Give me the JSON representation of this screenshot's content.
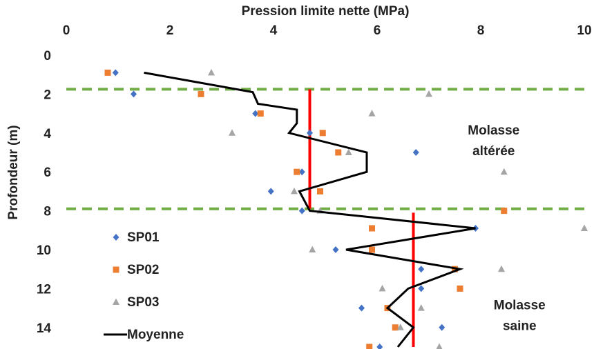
{
  "chart_data": {
    "type": "scatter",
    "title": "",
    "xlabel": "Pression limite nette (MPa)",
    "ylabel": "Profondeur (m)",
    "xlim": [
      0,
      10
    ],
    "ylim": [
      0,
      15
    ],
    "y_inverted": true,
    "x_axis_position": "top",
    "x_ticks": [
      "0",
      "2",
      "4",
      "6",
      "8",
      "10"
    ],
    "y_ticks": [
      "0",
      "2",
      "4",
      "6",
      "8",
      "10",
      "12",
      "14"
    ],
    "grid": false,
    "legend_position": "bottom-left",
    "series": [
      {
        "name": "SP01",
        "marker": "diamond",
        "color": "#4472C4",
        "points": [
          [
            0.95,
            0.9
          ],
          [
            1.3,
            2.0
          ],
          [
            3.65,
            3.0
          ],
          [
            4.7,
            4.0
          ],
          [
            6.75,
            5.0
          ],
          [
            4.55,
            6.0
          ],
          [
            3.95,
            7.0
          ],
          [
            4.55,
            8.0
          ],
          [
            7.9,
            8.9
          ],
          [
            5.2,
            10.0
          ],
          [
            6.85,
            11.0
          ],
          [
            6.85,
            12.0
          ],
          [
            5.7,
            13.0
          ],
          [
            7.25,
            14.0
          ],
          [
            6.05,
            15.0
          ]
        ]
      },
      {
        "name": "SP02",
        "marker": "square",
        "color": "#ED7D31",
        "points": [
          [
            0.8,
            0.9
          ],
          [
            2.6,
            2.0
          ],
          [
            3.75,
            3.0
          ],
          [
            4.95,
            4.0
          ],
          [
            5.25,
            5.0
          ],
          [
            4.45,
            6.0
          ],
          [
            4.9,
            7.0
          ],
          [
            8.45,
            8.0
          ],
          [
            5.9,
            8.9
          ],
          [
            5.9,
            10.0
          ],
          [
            7.5,
            11.0
          ],
          [
            7.6,
            12.0
          ],
          [
            6.2,
            13.0
          ],
          [
            6.35,
            14.0
          ],
          [
            5.85,
            15.0
          ]
        ]
      },
      {
        "name": "SP03",
        "marker": "triangle",
        "color": "#A5A5A5",
        "points": [
          [
            2.8,
            0.9
          ],
          [
            7.0,
            2.0
          ],
          [
            5.9,
            3.0
          ],
          [
            3.2,
            4.0
          ],
          [
            5.45,
            5.0
          ],
          [
            8.45,
            6.0
          ],
          [
            4.4,
            7.0
          ],
          [
            4.9,
            8.0
          ],
          [
            10.0,
            8.9
          ],
          [
            4.75,
            10.0
          ],
          [
            8.4,
            11.0
          ],
          [
            6.1,
            12.0
          ],
          [
            6.85,
            13.0
          ],
          [
            6.45,
            14.0
          ],
          [
            7.2,
            15.0
          ]
        ]
      },
      {
        "name": "Moyenne",
        "type": "line",
        "color": "#000000",
        "points": [
          [
            1.5,
            0.9
          ],
          [
            3.6,
            1.9
          ],
          [
            3.7,
            2.5
          ],
          [
            4.45,
            2.8
          ],
          [
            4.45,
            3.5
          ],
          [
            4.3,
            4.0
          ],
          [
            5.8,
            5.0
          ],
          [
            5.8,
            6.0
          ],
          [
            4.5,
            7.0
          ],
          [
            4.7,
            8.0
          ],
          [
            7.9,
            8.9
          ],
          [
            5.4,
            10.0
          ],
          [
            7.6,
            11.0
          ],
          [
            6.6,
            12.0
          ],
          [
            6.2,
            13.0
          ],
          [
            6.7,
            14.0
          ],
          [
            6.4,
            15.0
          ]
        ]
      }
    ],
    "reference_lines": [
      {
        "kind": "horizontal-dashed",
        "color": "#70AD47",
        "y": 1.75
      },
      {
        "kind": "horizontal-dashed",
        "color": "#70AD47",
        "y": 7.9
      },
      {
        "kind": "vertical-segment",
        "color": "#FF0000",
        "x": 4.7,
        "y_from": 1.75,
        "y_to": 7.9
      },
      {
        "kind": "vertical-segment",
        "color": "#FF0000",
        "x": 6.7,
        "y_from": 8.1,
        "y_to": 15.0
      }
    ],
    "annotations": [
      {
        "lines": [
          "Molasse",
          "altérée"
        ],
        "x": 8.25,
        "y": 4.5
      },
      {
        "lines": [
          "Molasse",
          "saine"
        ],
        "x": 8.75,
        "y": 13.5
      }
    ]
  }
}
